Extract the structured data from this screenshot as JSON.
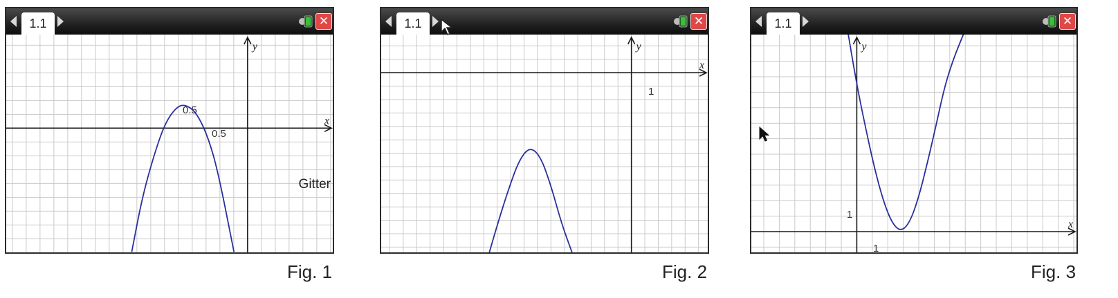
{
  "panels": [
    {
      "tab_label": "1.1",
      "figure_label": "Fig. 1"
    },
    {
      "tab_label": "1.1",
      "figure_label": "Fig. 2"
    },
    {
      "tab_label": "1.1",
      "figure_label": "Fig. 3"
    }
  ],
  "colors": {
    "curve": "#2a2f9c",
    "grid": "#c9c9c9",
    "axis": "#1a1a1a",
    "close_button": "#e04848",
    "battery": "#3bbf3b"
  },
  "icons": [
    "left-arrow-icon",
    "right-arrow-icon",
    "battery-icon",
    "close-icon",
    "mouse-pointer-icon"
  ],
  "chart_data": [
    {
      "type": "line",
      "title": "",
      "xlabel": "x",
      "ylabel": "y",
      "grid": true,
      "grid_step": 0.125,
      "xlim": [
        -2.125,
        0.75
      ],
      "ylim": [
        -1.195,
        0.9
      ],
      "axis_tick_labels": [
        "0.5",
        "0.5"
      ],
      "annotation": "Gitter",
      "series": [
        {
          "x": [
            -1.02,
            -0.93,
            -0.83,
            -0.73,
            -0.63,
            -0.55,
            -0.45,
            -0.35,
            -0.26,
            -0.12
          ],
          "y": [
            -1.19,
            -0.68,
            -0.28,
            0.04,
            0.2,
            0.23,
            0.15,
            -0.08,
            -0.42,
            -1.19
          ]
        }
      ]
    },
    {
      "type": "line",
      "title": "",
      "xlabel": "x",
      "ylabel": "y",
      "grid": true,
      "xlim": [
        -11.8,
        3.6
      ],
      "ylim": [
        -8.0,
        1.7
      ],
      "axis_tick_labels": [
        "1"
      ],
      "series": [
        {
          "x": [
            -6.7,
            -6.3,
            -5.8,
            -5.3,
            -4.8,
            -4.3,
            -3.8,
            -3.3,
            -2.8
          ],
          "y": [
            -8.0,
            -6.7,
            -5.2,
            -3.9,
            -3.3,
            -3.7,
            -5.0,
            -6.7,
            -8.0
          ]
        }
      ]
    },
    {
      "type": "line",
      "title": "",
      "xlabel": "x",
      "ylabel": "y",
      "grid": true,
      "xlim": [
        -6.0,
        12.5
      ],
      "ylim": [
        -1.2,
        11.4
      ],
      "axis_tick_labels": [
        "1",
        "1"
      ],
      "series": [
        {
          "x": [
            -0.5,
            0,
            0.5,
            1,
            1.5,
            2,
            2.5,
            3,
            3.5,
            4,
            4.5,
            5,
            5.5,
            6.1
          ],
          "y": [
            11.5,
            8.5,
            6.0,
            3.7,
            1.8,
            0.5,
            0.0,
            0.5,
            1.9,
            3.9,
            6.1,
            8.4,
            10.0,
            11.5
          ]
        }
      ]
    }
  ]
}
